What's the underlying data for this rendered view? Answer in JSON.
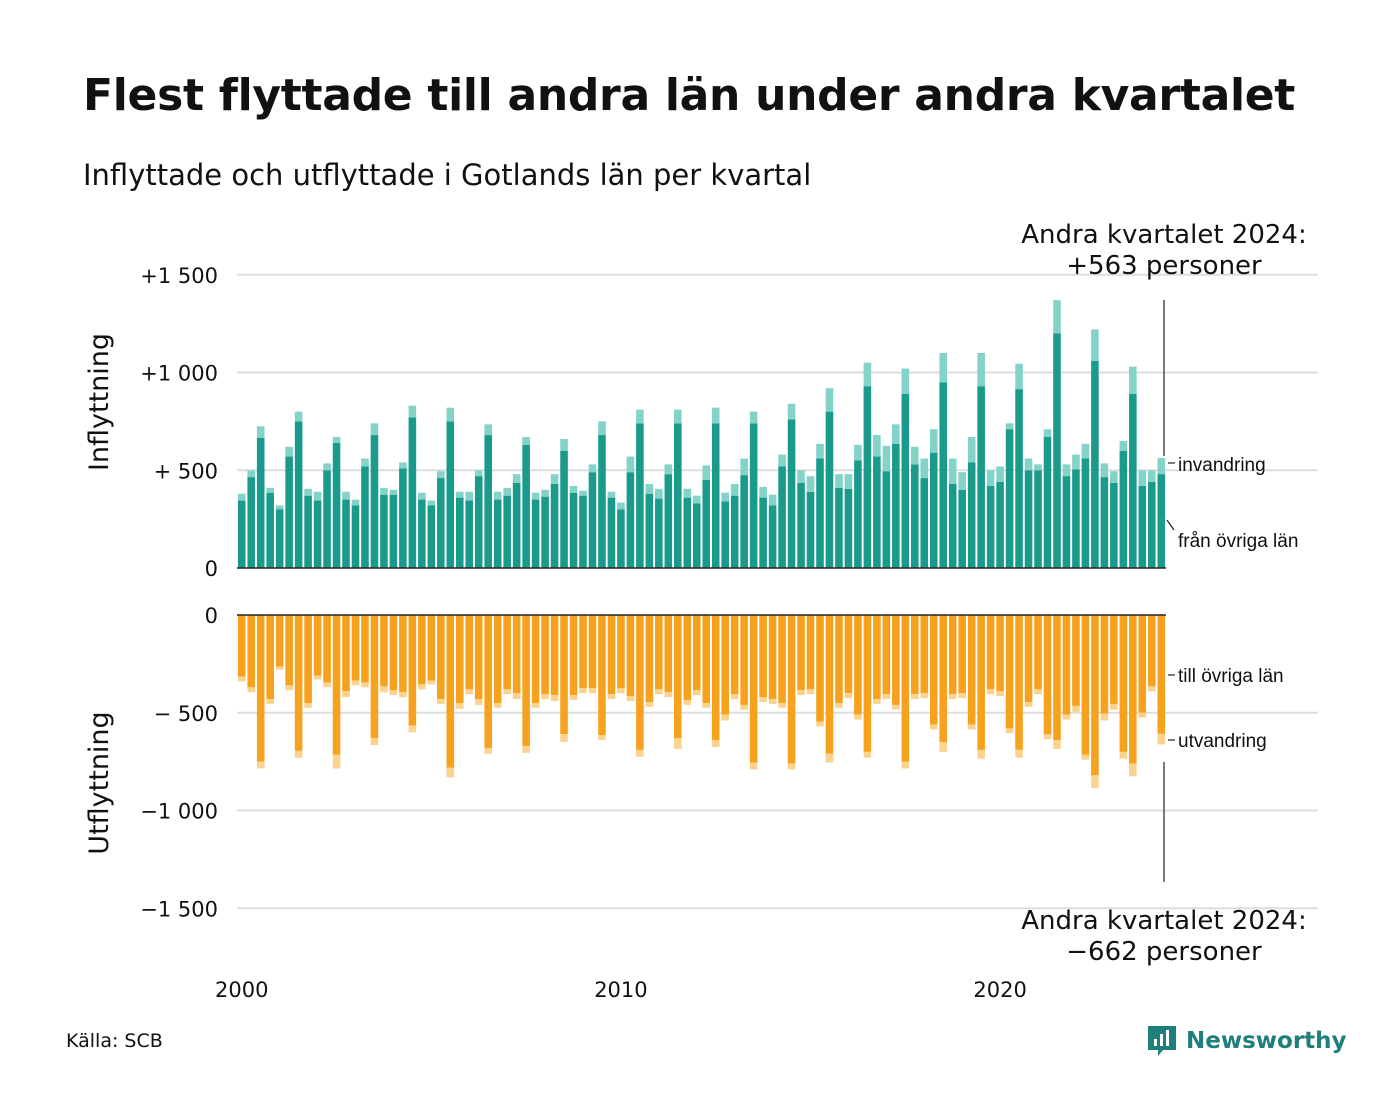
{
  "title": "Flest flyttade till andra län under andra kvartalet",
  "subtitle": "Inflyttade och utflyttade i Gotlands län per kvartal",
  "source": "Källa: SCB",
  "logo_text": "Newsworthy",
  "colors": {
    "in_domestic": "#1a9a8a",
    "in_immigration": "#84d3c8",
    "out_domestic": "#f6a21e",
    "out_emigration": "#fbd38f",
    "grid": "#dddddd",
    "logo": "#1f7f7a"
  },
  "chart_data": {
    "type": "bar",
    "stacked": true,
    "x_start": "2000 Q1",
    "x_end": "2024 Q2",
    "x_ticks": [
      "2000",
      "2010",
      "2020"
    ],
    "y_ticks": {
      "inflyttning": [
        {
          "value": 0,
          "label": "0"
        },
        {
          "value": 500,
          "label": "+  500"
        },
        {
          "value": 1000,
          "label": "+1 000"
        },
        {
          "value": 1500,
          "label": "+1 500"
        }
      ],
      "utflyttning": [
        {
          "value": 0,
          "label": "0"
        },
        {
          "value": -500,
          "label": "−  500"
        },
        {
          "value": -1000,
          "label": "−1 000"
        },
        {
          "value": -1500,
          "label": "−1 500"
        }
      ]
    },
    "ylabel_top": "Inflyttning",
    "ylabel_bottom": "Utflyttning",
    "series": [
      {
        "name": "från övriga län",
        "panel": "inflyttning",
        "values": [
          345,
          465,
          665,
          385,
          300,
          570,
          750,
          370,
          345,
          500,
          640,
          350,
          320,
          520,
          680,
          375,
          375,
          510,
          770,
          350,
          320,
          460,
          750,
          360,
          345,
          470,
          680,
          350,
          370,
          435,
          630,
          350,
          365,
          430,
          600,
          385,
          370,
          490,
          680,
          360,
          300,
          490,
          740,
          380,
          355,
          480,
          740,
          360,
          330,
          450,
          740,
          340,
          370,
          475,
          740,
          360,
          320,
          520,
          760,
          435,
          390,
          560,
          800,
          410,
          405,
          550,
          930,
          570,
          495,
          635,
          890,
          530,
          460,
          590,
          950,
          430,
          400,
          540,
          930,
          420,
          440,
          710,
          915,
          500,
          500,
          670,
          1200,
          470,
          505,
          560,
          1060,
          465,
          435,
          600,
          890,
          420,
          440,
          480
        ]
      },
      {
        "name": "invandring",
        "panel": "inflyttning",
        "values": [
          35,
          35,
          60,
          25,
          20,
          50,
          50,
          35,
          45,
          35,
          30,
          40,
          30,
          40,
          60,
          35,
          25,
          30,
          60,
          35,
          25,
          35,
          70,
          30,
          45,
          30,
          55,
          40,
          40,
          45,
          40,
          35,
          35,
          50,
          60,
          35,
          25,
          40,
          70,
          30,
          35,
          80,
          70,
          50,
          50,
          50,
          70,
          45,
          40,
          75,
          80,
          45,
          60,
          85,
          60,
          55,
          55,
          60,
          80,
          65,
          80,
          75,
          120,
          70,
          75,
          80,
          120,
          110,
          130,
          100,
          130,
          90,
          100,
          120,
          150,
          130,
          90,
          130,
          170,
          80,
          80,
          30,
          130,
          60,
          30,
          40,
          170,
          60,
          75,
          75,
          160,
          70,
          60,
          50,
          140,
          80,
          60,
          83
        ]
      },
      {
        "name": "till övriga län",
        "panel": "utflyttning",
        "values": [
          315,
          370,
          750,
          430,
          265,
          360,
          695,
          450,
          310,
          345,
          715,
          390,
          335,
          345,
          630,
          365,
          385,
          395,
          565,
          355,
          335,
          430,
          780,
          450,
          380,
          430,
          680,
          450,
          380,
          400,
          670,
          450,
          405,
          410,
          610,
          410,
          375,
          375,
          615,
          405,
          375,
          415,
          690,
          445,
          380,
          395,
          630,
          435,
          385,
          450,
          640,
          510,
          405,
          460,
          755,
          420,
          430,
          450,
          760,
          385,
          380,
          545,
          710,
          450,
          400,
          510,
          700,
          430,
          405,
          460,
          750,
          405,
          400,
          560,
          650,
          405,
          400,
          560,
          690,
          380,
          390,
          580,
          690,
          445,
          380,
          610,
          640,
          510,
          465,
          715,
          820,
          505,
          455,
          700,
          760,
          500,
          365,
          608
        ]
      },
      {
        "name": "utvandring",
        "panel": "utflyttning",
        "values": [
          25,
          25,
          35,
          25,
          15,
          25,
          35,
          25,
          20,
          25,
          70,
          30,
          25,
          25,
          35,
          30,
          25,
          25,
          35,
          25,
          20,
          25,
          50,
          30,
          25,
          30,
          30,
          25,
          25,
          30,
          35,
          25,
          25,
          30,
          40,
          25,
          25,
          25,
          25,
          25,
          25,
          25,
          35,
          25,
          25,
          25,
          55,
          25,
          25,
          25,
          35,
          30,
          25,
          25,
          35,
          25,
          25,
          25,
          30,
          25,
          25,
          25,
          45,
          25,
          25,
          25,
          30,
          25,
          25,
          25,
          35,
          25,
          25,
          25,
          50,
          25,
          25,
          25,
          45,
          25,
          25,
          25,
          40,
          25,
          25,
          25,
          45,
          25,
          30,
          25,
          65,
          35,
          30,
          35,
          65,
          25,
          25,
          54
        ]
      }
    ],
    "annotations": {
      "top_line1": "Andra kvartalet 2024:",
      "top_line2": "+563 personer",
      "bottom_line1": "Andra kvartalet 2024:",
      "bottom_line2": "−662 personer"
    }
  }
}
